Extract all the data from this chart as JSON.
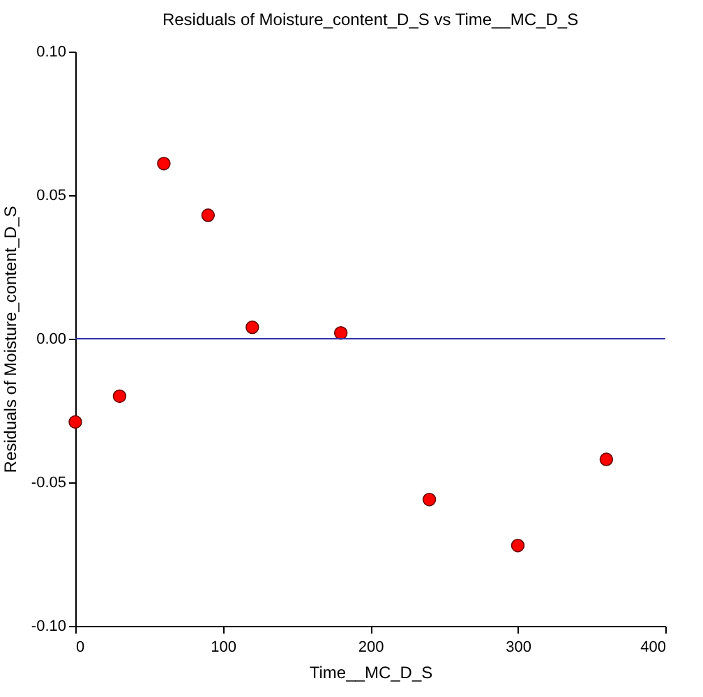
{
  "chart_data": {
    "type": "scatter",
    "title": "Residuals of Moisture_content_D_S vs Time__MC_D_S",
    "xlabel": "Time__MC_D_S",
    "ylabel": "Residuals of Moisture_content_D_S",
    "x": [
      0,
      30,
      60,
      90,
      120,
      180,
      240,
      300,
      360
    ],
    "series": [
      {
        "color": "#ff0000",
        "values": [
          -0.029,
          -0.02,
          0.061,
          0.043,
          0.004,
          0.002,
          -0.056,
          -0.072,
          -0.042
        ]
      }
    ],
    "xlim": [
      0,
      400
    ],
    "xticks": [
      0,
      100,
      200,
      300,
      400
    ],
    "ylim": [
      -0.1,
      0.1
    ],
    "yticks": [
      {
        "value": -0.1,
        "label": "-0.10"
      },
      {
        "value": -0.05,
        "label": "-0.05"
      },
      {
        "value": 0,
        "label": "0.00"
      },
      {
        "value": 0.05,
        "label": "0.05"
      },
      {
        "value": 0.1,
        "label": "0.10"
      }
    ],
    "ref_lines": [
      {
        "axis": "y",
        "value": 0,
        "color": "#3333aa"
      }
    ],
    "marker": "circle",
    "grid": false
  }
}
